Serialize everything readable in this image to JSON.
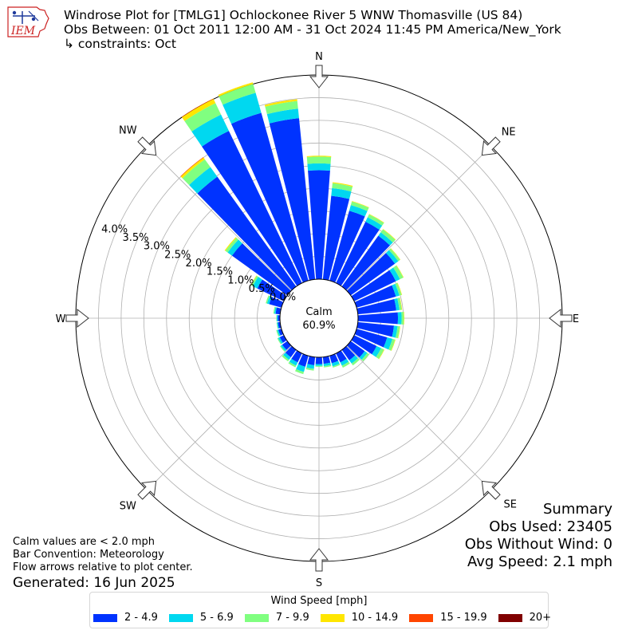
{
  "header": {
    "title_line1": "Windrose Plot for [TMLG1] Ochlockonee River 5 WNW Thomasville (US 84)",
    "title_line2": "Obs Between: 01 Oct 2011 12:00 AM - 31 Oct 2024 11:45 PM America/New_York",
    "title_line3": "↳ constraints: Oct",
    "logo_text": "IEM"
  },
  "summary": {
    "title": "Summary",
    "obs_used": "Obs Used: 23405",
    "obs_without_wind": "Obs Without Wind: 0",
    "avg_speed": "Avg Speed: 2.1 mph"
  },
  "notes": {
    "calm_note": "Calm values are < 2.0 mph",
    "bar_convention": "Bar Convention: Meteorology",
    "flow_arrows": "Flow arrows relative to plot center.",
    "generated": "Generated: 16 Jun 2025"
  },
  "center": {
    "label": "Calm",
    "value": "60.9%"
  },
  "colors": {
    "bins": [
      "#0033ff",
      "#00d8f0",
      "#80ff80",
      "#ffe600",
      "#ff4500",
      "#800000"
    ]
  },
  "chart_data": {
    "type": "windrose",
    "radial_unit": "%",
    "rlim": [
      0,
      4.5
    ],
    "radial_ticks": [
      0.0,
      0.5,
      1.0,
      1.5,
      2.0,
      2.5,
      3.0,
      3.5,
      4.0
    ],
    "radial_tick_labels": [
      "0.0%",
      "0.5%",
      "1.0%",
      "1.5%",
      "2.0%",
      "2.5%",
      "3.0%",
      "3.5%",
      "4.0%"
    ],
    "calm_percent": 60.9,
    "direction_labels": [
      "N",
      "NE",
      "E",
      "SE",
      "S",
      "SW",
      "W",
      "NW"
    ],
    "direction_angles": [
      0,
      45,
      90,
      135,
      180,
      225,
      270,
      315
    ],
    "legend_title": "Wind Speed [mph]",
    "bins": [
      "2 - 4.9",
      "5 - 6.9",
      "7 - 9.9",
      "10 - 14.9",
      "15 - 19.9",
      "20+"
    ],
    "sectors": [
      0,
      10,
      20,
      30,
      40,
      50,
      60,
      70,
      80,
      90,
      100,
      110,
      120,
      130,
      140,
      150,
      160,
      170,
      180,
      190,
      200,
      210,
      220,
      230,
      240,
      250,
      260,
      270,
      280,
      290,
      300,
      310,
      320,
      330,
      340,
      350
    ],
    "cumulative": [
      [
        2.4,
        2.55,
        2.7,
        2.72,
        2.72,
        2.72
      ],
      [
        1.85,
        2.02,
        2.13,
        2.15,
        2.15,
        2.15
      ],
      [
        1.6,
        1.73,
        1.81,
        1.82,
        1.82,
        1.82
      ],
      [
        1.5,
        1.61,
        1.68,
        1.69,
        1.69,
        1.69
      ],
      [
        1.38,
        1.47,
        1.55,
        1.56,
        1.56,
        1.56
      ],
      [
        1.2,
        1.29,
        1.34,
        1.35,
        1.35,
        1.35
      ],
      [
        1.02,
        1.12,
        1.2,
        1.21,
        1.21,
        1.21
      ],
      [
        0.9,
        0.98,
        1.03,
        1.04,
        1.04,
        1.04
      ],
      [
        0.85,
        0.92,
        0.97,
        0.98,
        0.98,
        0.98
      ],
      [
        0.88,
        0.96,
        1.01,
        1.02,
        1.02,
        1.02
      ],
      [
        0.8,
        0.88,
        0.93,
        0.94,
        0.94,
        0.94
      ],
      [
        0.7,
        0.82,
        0.88,
        0.89,
        0.89,
        0.89
      ],
      [
        0.55,
        0.66,
        0.73,
        0.74,
        0.74,
        0.74
      ],
      [
        0.38,
        0.45,
        0.5,
        0.5,
        0.5,
        0.5
      ],
      [
        0.28,
        0.37,
        0.42,
        0.42,
        0.42,
        0.42
      ],
      [
        0.22,
        0.3,
        0.35,
        0.35,
        0.35,
        0.35
      ],
      [
        0.17,
        0.24,
        0.27,
        0.27,
        0.27,
        0.27
      ],
      [
        0.15,
        0.2,
        0.23,
        0.23,
        0.23,
        0.23
      ],
      [
        0.15,
        0.19,
        0.21,
        0.21,
        0.21,
        0.21
      ],
      [
        0.18,
        0.26,
        0.3,
        0.3,
        0.3,
        0.3
      ],
      [
        0.25,
        0.37,
        0.42,
        0.42,
        0.42,
        0.42
      ],
      [
        0.22,
        0.3,
        0.34,
        0.34,
        0.34,
        0.34
      ],
      [
        0.2,
        0.27,
        0.31,
        0.31,
        0.31,
        0.31
      ],
      [
        0.14,
        0.18,
        0.2,
        0.2,
        0.2,
        0.2
      ],
      [
        0.1,
        0.14,
        0.16,
        0.16,
        0.16,
        0.16
      ],
      [
        0.07,
        0.1,
        0.12,
        0.12,
        0.12,
        0.12
      ],
      [
        0.05,
        0.07,
        0.08,
        0.08,
        0.08,
        0.08
      ],
      [
        0.05,
        0.07,
        0.08,
        0.08,
        0.08,
        0.08
      ],
      [
        0.1,
        0.13,
        0.15,
        0.15,
        0.15,
        0.15
      ],
      [
        0.28,
        0.33,
        0.36,
        0.36,
        0.36,
        0.36
      ],
      [
        0.65,
        0.76,
        0.8,
        0.81,
        0.81,
        0.81
      ],
      [
        1.5,
        1.62,
        1.68,
        1.7,
        1.7,
        1.7
      ],
      [
        2.98,
        3.24,
        3.45,
        3.5,
        3.51,
        3.51
      ],
      [
        3.72,
        4.12,
        4.4,
        4.5,
        4.51,
        4.51
      ],
      [
        3.84,
        4.3,
        4.5,
        4.54,
        4.54,
        4.54
      ],
      [
        3.57,
        3.78,
        3.95,
        3.99,
        3.99,
        3.99
      ]
    ]
  }
}
